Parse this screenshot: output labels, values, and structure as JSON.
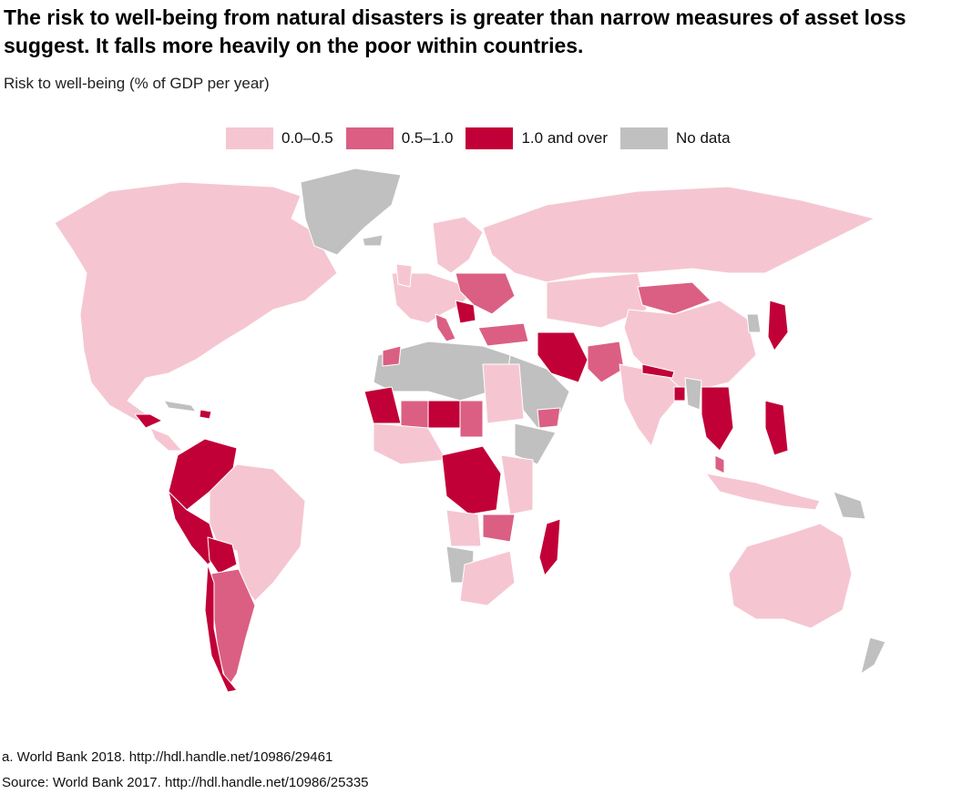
{
  "title": "The risk to well-being from natural disasters is greater than narrow measures of asset loss suggest. It falls more heavily on the poor within countries.",
  "subtitle": "Risk to well-being (% of GDP per year)",
  "legend": [
    {
      "label": "0.0–0.5",
      "color": "#f5c6d1"
    },
    {
      "label": "0.5–1.0",
      "color": "#db5f83"
    },
    {
      "label": "1.0 and over",
      "color": "#c10037"
    },
    {
      "label": "No data",
      "color": "#c0c0c0"
    }
  ],
  "notes": {
    "note_a": "a. World Bank 2018. http://hdl.handle.net/10986/29461",
    "source": "Source: World Bank 2017. http://hdl.handle.net/10986/25335"
  },
  "colors": {
    "low": "#f5c6d1",
    "mid": "#db5f83",
    "high": "#c10037",
    "nodata": "#c0c0c0"
  }
}
